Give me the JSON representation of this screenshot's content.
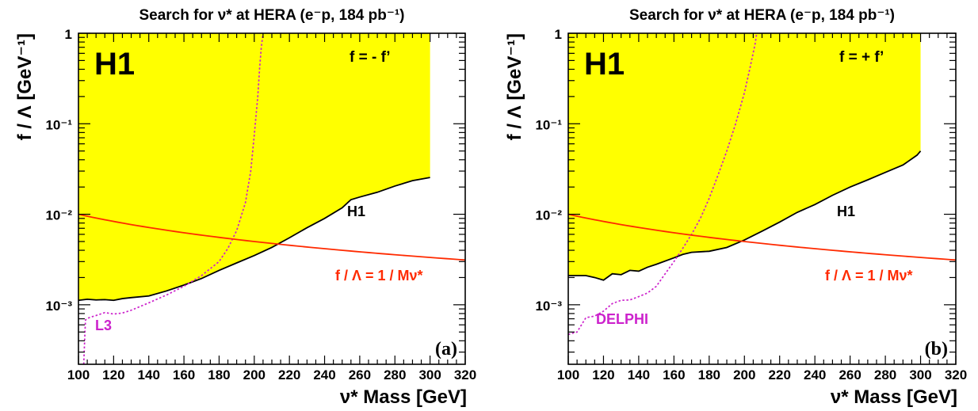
{
  "colors": {
    "excluded_fill": "#ffff00",
    "h1_line": "#000000",
    "other_experiment": "#cc22cc",
    "unit_line": "#ff2a00"
  },
  "chart_data": [
    {
      "type": "line",
      "panel_label": "(a)",
      "title": "Search for ν* at HERA (e⁻p, 184 pb⁻¹)",
      "experiment": "H1",
      "coupling": "f = - f’",
      "xlabel": "ν* Mass [GeV]",
      "ylabel": "f / Λ [GeV⁻¹]",
      "xlim": [
        100,
        320
      ],
      "ylim": [
        0.00022,
        1
      ],
      "yscale": "log",
      "xticks": [
        "100",
        "120",
        "140",
        "160",
        "180",
        "200",
        "220",
        "240",
        "260",
        "280",
        "300",
        "320"
      ],
      "yticks": [
        "10⁻³",
        "10⁻²",
        "10⁻¹",
        "1"
      ],
      "series": [
        {
          "name": "H1",
          "style": "solid-fill-above",
          "x": [
            100,
            105,
            110,
            115,
            120,
            125,
            130,
            140,
            150,
            160,
            170,
            180,
            190,
            200,
            210,
            220,
            230,
            240,
            250,
            255,
            260,
            270,
            280,
            290,
            300
          ],
          "y": [
            0.00112,
            0.00115,
            0.00113,
            0.00114,
            0.00112,
            0.00117,
            0.0012,
            0.00125,
            0.00142,
            0.00165,
            0.00195,
            0.0024,
            0.0029,
            0.0035,
            0.0043,
            0.0055,
            0.0071,
            0.009,
            0.0118,
            0.0145,
            0.0155,
            0.0175,
            0.0205,
            0.0235,
            0.0255
          ]
        },
        {
          "name": "L3",
          "style": "dotted",
          "x": [
            103,
            103.5,
            104,
            106,
            110,
            115,
            120,
            125,
            130,
            140,
            150,
            160,
            170,
            180,
            185,
            190,
            195,
            198,
            200,
            202,
            203,
            204,
            205
          ],
          "y": [
            0.00022,
            0.0004,
            0.00068,
            0.00072,
            0.00076,
            0.00082,
            0.00079,
            0.00081,
            0.00087,
            0.00105,
            0.00128,
            0.0016,
            0.0021,
            0.003,
            0.0042,
            0.0066,
            0.0135,
            0.03,
            0.075,
            0.2,
            0.4,
            0.7,
            1.0
          ]
        },
        {
          "name": "f / Λ = 1 / Mν*",
          "style": "solid",
          "x": [
            100,
            320
          ],
          "y": [
            0.01,
            0.003125
          ]
        }
      ]
    },
    {
      "type": "line",
      "panel_label": "(b)",
      "title": "Search for ν* at HERA (e⁻p, 184 pb⁻¹)",
      "experiment": "H1",
      "coupling": "f = + f’",
      "xlabel": "ν* Mass [GeV]",
      "ylabel": "f / Λ [GeV⁻¹]",
      "xlim": [
        100,
        320
      ],
      "ylim": [
        0.00022,
        1
      ],
      "yscale": "log",
      "xticks": [
        "100",
        "120",
        "140",
        "160",
        "180",
        "200",
        "220",
        "240",
        "260",
        "280",
        "300",
        "320"
      ],
      "yticks": [
        "10⁻³",
        "10⁻²",
        "10⁻¹",
        "1"
      ],
      "series": [
        {
          "name": "H1",
          "style": "solid-fill-above",
          "x": [
            100,
            105,
            110,
            115,
            120,
            125,
            130,
            135,
            140,
            145,
            150,
            160,
            165,
            170,
            180,
            190,
            200,
            210,
            220,
            230,
            240,
            250,
            260,
            270,
            280,
            290,
            298,
            300
          ],
          "y": [
            0.0021,
            0.0021,
            0.0021,
            0.002,
            0.00187,
            0.0022,
            0.00215,
            0.0024,
            0.00235,
            0.0026,
            0.0028,
            0.0033,
            0.0036,
            0.0038,
            0.0039,
            0.0043,
            0.0052,
            0.0065,
            0.0082,
            0.0105,
            0.0128,
            0.0162,
            0.02,
            0.024,
            0.029,
            0.035,
            0.045,
            0.05
          ]
        },
        {
          "name": "DELPHI",
          "style": "dotted",
          "x": [
            100,
            105,
            110,
            115,
            120,
            125,
            130,
            135,
            140,
            145,
            150,
            155,
            160,
            165,
            170,
            175,
            180,
            185,
            190,
            195,
            200,
            203,
            206,
            207
          ],
          "y": [
            0.00047,
            0.0005,
            0.00072,
            0.00075,
            0.00085,
            0.00103,
            0.00112,
            0.00113,
            0.00123,
            0.00135,
            0.0016,
            0.0022,
            0.003,
            0.0042,
            0.006,
            0.009,
            0.015,
            0.027,
            0.05,
            0.1,
            0.22,
            0.4,
            0.75,
            1.0
          ]
        },
        {
          "name": "f / Λ = 1 / Mν*",
          "style": "solid",
          "x": [
            100,
            320
          ],
          "y": [
            0.01,
            0.003125
          ]
        }
      ]
    }
  ]
}
